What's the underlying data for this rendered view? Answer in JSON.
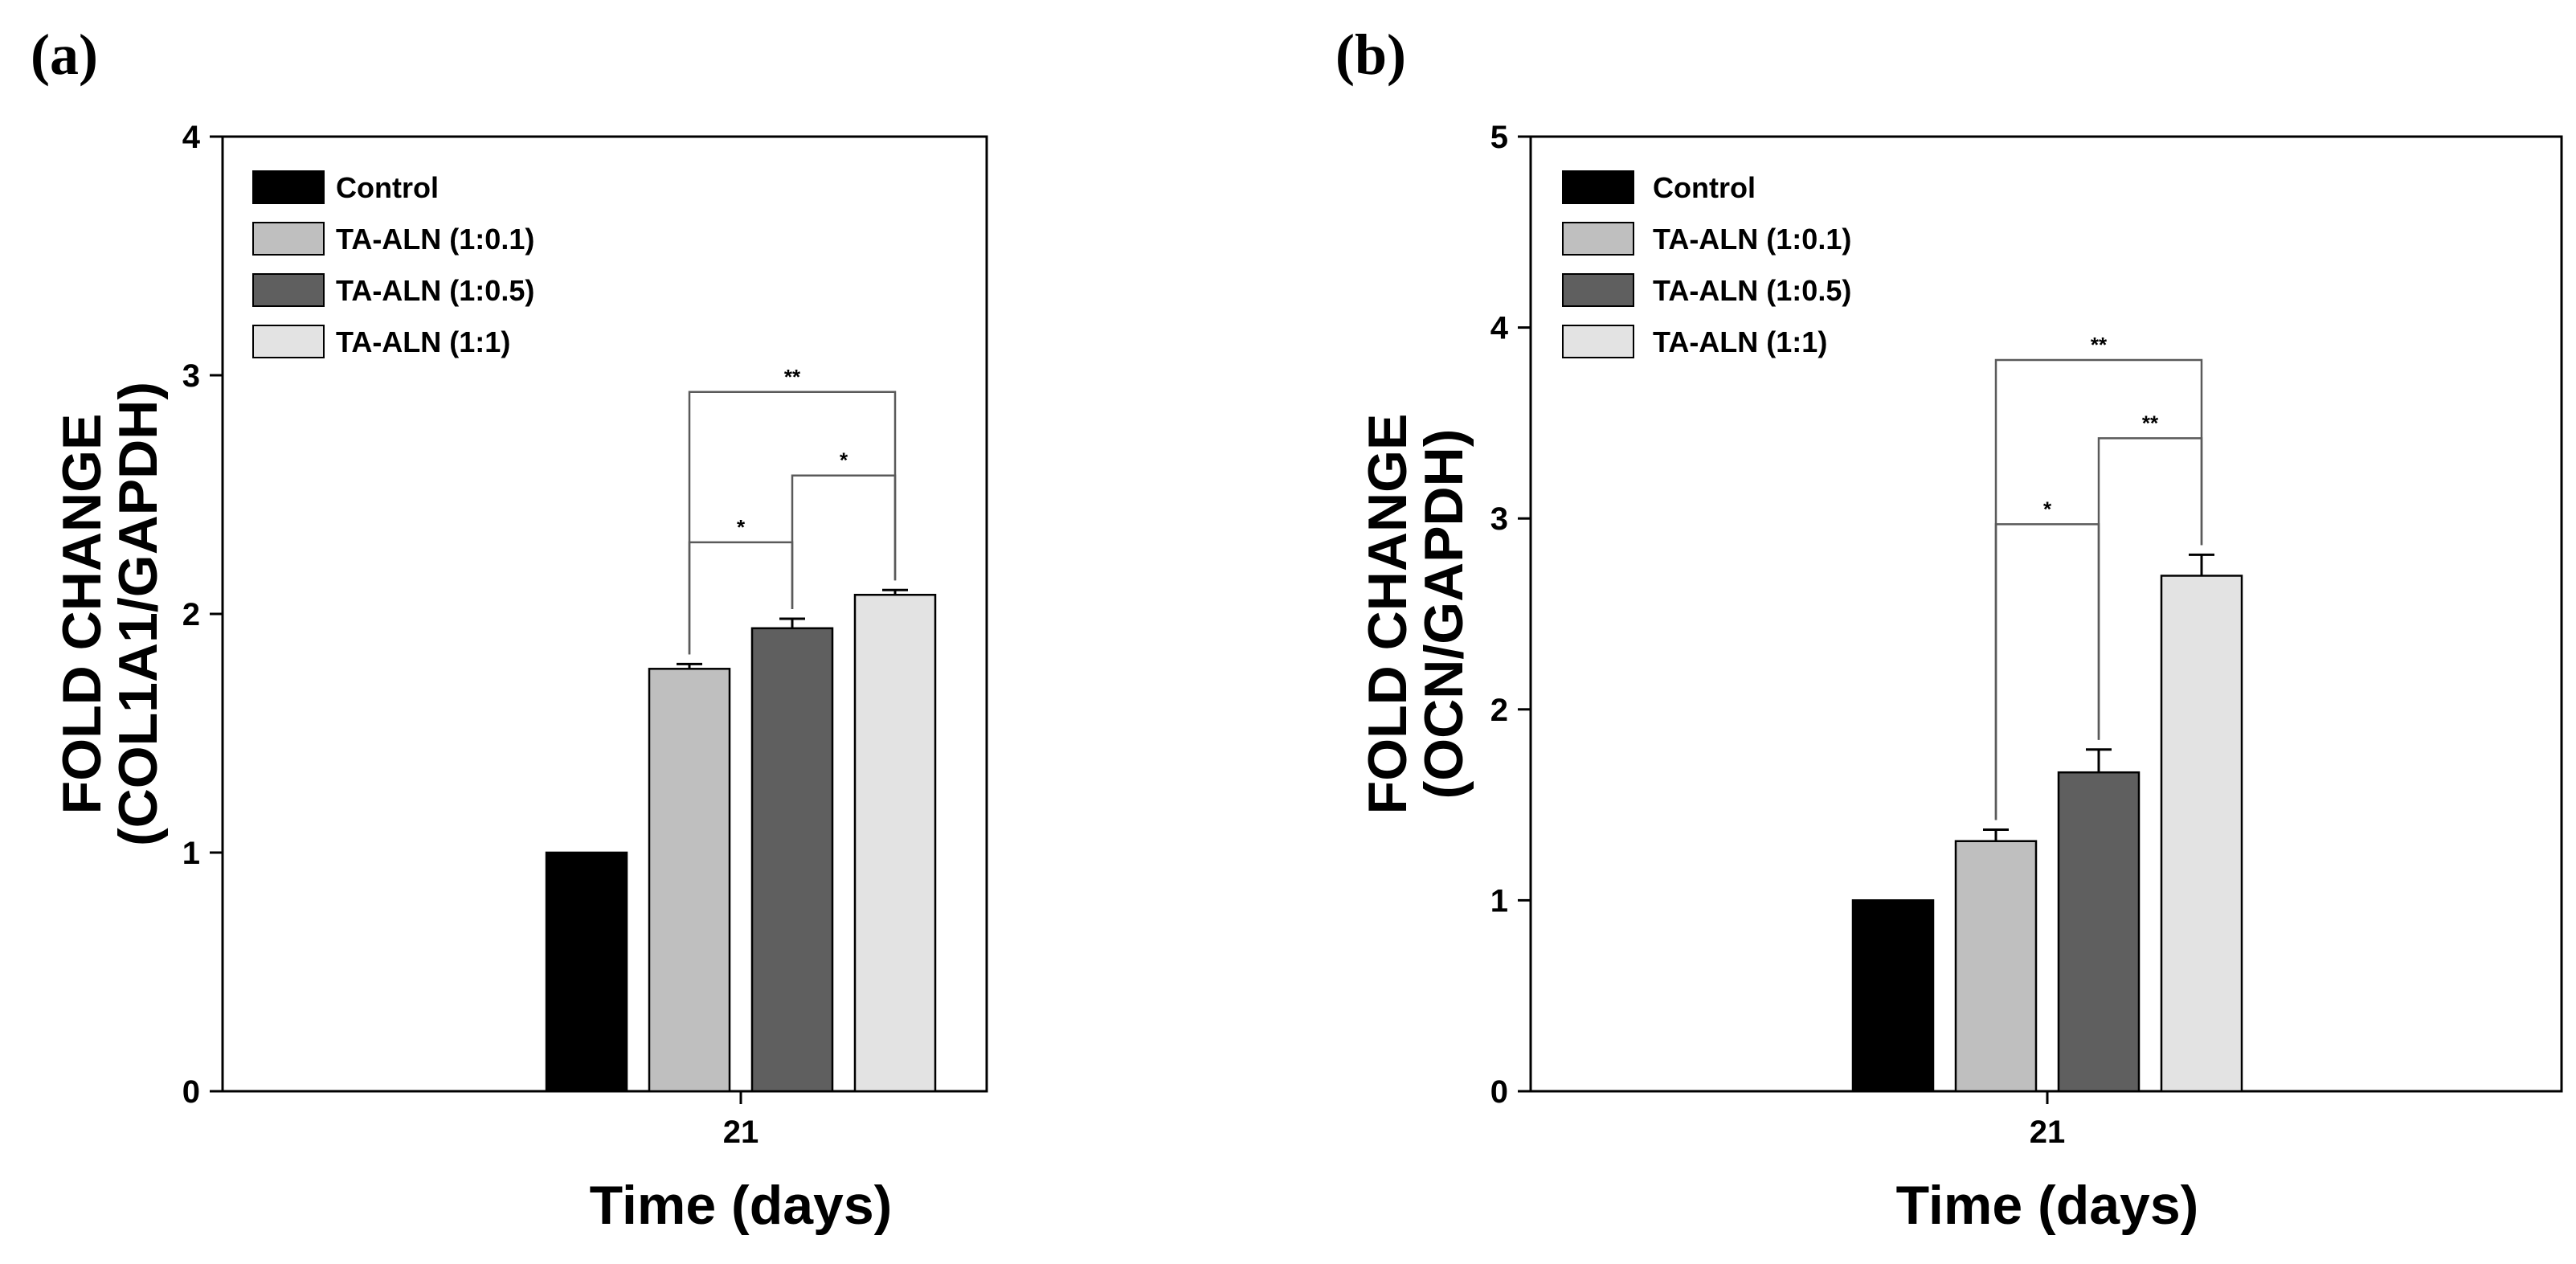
{
  "chart_data": [
    {
      "type": "bar",
      "panel_label": "(a)",
      "categories": [
        "21"
      ],
      "xlabel": "Time (days)",
      "ylabel_line1": "FOLD CHANGE",
      "ylabel_line2": "(COL1A1/GAPDH)",
      "ylim": [
        0,
        4
      ],
      "yticks": [
        0,
        1,
        2,
        3,
        4
      ],
      "legend_position": "top-left",
      "series": [
        {
          "name": "Control",
          "color": "#000000",
          "values": [
            1.0
          ],
          "error": [
            0
          ]
        },
        {
          "name": "TA-ALN (1:0.1)",
          "color": "#bfbfbf",
          "values": [
            1.77
          ],
          "error": [
            0.02
          ]
        },
        {
          "name": "TA-ALN (1:0.5)",
          "color": "#5f5f5f",
          "values": [
            1.94
          ],
          "error": [
            0.04
          ]
        },
        {
          "name": "TA-ALN (1:1)",
          "color": "#e3e3e3",
          "values": [
            2.08
          ],
          "error": [
            0.02
          ]
        }
      ],
      "significance": [
        {
          "from": 1,
          "to": 2,
          "label": "*",
          "y": 2.3
        },
        {
          "from": 2,
          "to": 3,
          "label": "*",
          "y": 2.58
        },
        {
          "from": 1,
          "to": 3,
          "label": "**",
          "y": 2.93
        }
      ]
    },
    {
      "type": "bar",
      "panel_label": "(b)",
      "categories": [
        "21"
      ],
      "xlabel": "Time (days)",
      "ylabel_line1": "FOLD CHANGE",
      "ylabel_line2": "(OCN/GAPDH)",
      "ylim": [
        0,
        5
      ],
      "yticks": [
        0,
        1,
        2,
        3,
        4,
        5
      ],
      "legend_position": "top-left",
      "series": [
        {
          "name": "Control",
          "color": "#000000",
          "values": [
            1.0
          ],
          "error": [
            0
          ]
        },
        {
          "name": "TA-ALN (1:0.1)",
          "color": "#bfbfbf",
          "values": [
            1.31
          ],
          "error": [
            0.06
          ]
        },
        {
          "name": "TA-ALN (1:0.5)",
          "color": "#5f5f5f",
          "values": [
            1.67
          ],
          "error": [
            0.12
          ]
        },
        {
          "name": "TA-ALN (1:1)",
          "color": "#e3e3e3",
          "values": [
            2.7
          ],
          "error": [
            0.11
          ]
        }
      ],
      "significance": [
        {
          "from": 1,
          "to": 2,
          "label": "*",
          "y": 2.97
        },
        {
          "from": 2,
          "to": 3,
          "label": "**",
          "y": 3.42
        },
        {
          "from": 1,
          "to": 3,
          "label": "**",
          "y": 3.83
        }
      ]
    }
  ]
}
